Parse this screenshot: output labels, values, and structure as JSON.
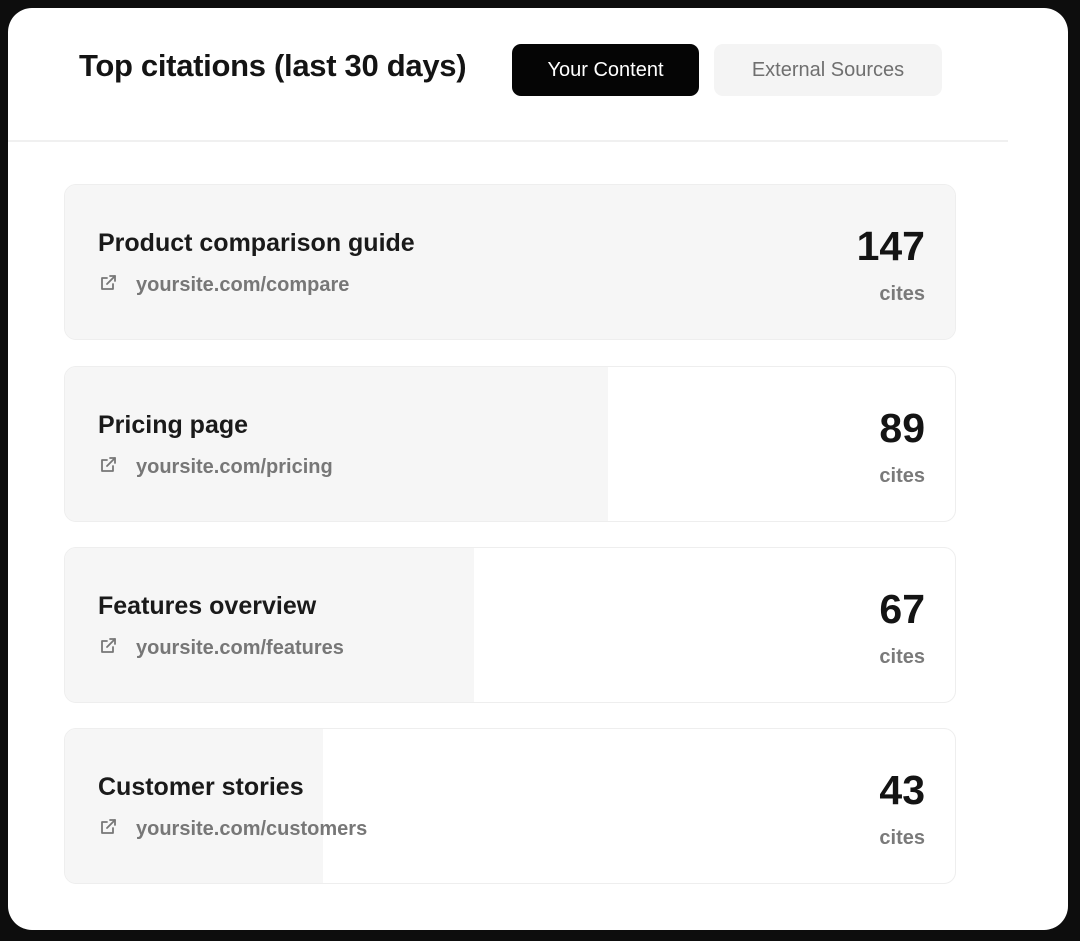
{
  "header": {
    "title": "Top citations (last 30 days)",
    "tabs": [
      {
        "label": "Your Content",
        "active": true
      },
      {
        "label": "External Sources",
        "active": false
      }
    ]
  },
  "citations": [
    {
      "name": "Product comparison guide",
      "url": "yoursite.com/compare",
      "count": "147",
      "unit": "cites",
      "share": 1.0
    },
    {
      "name": "Pricing page",
      "url": "yoursite.com/pricing",
      "count": "89",
      "unit": "cites",
      "share": 0.61
    },
    {
      "name": "Features overview",
      "url": "yoursite.com/features",
      "count": "67",
      "unit": "cites",
      "share": 0.46
    },
    {
      "name": "Customer stories",
      "url": "yoursite.com/customers",
      "count": "43",
      "unit": "cites",
      "share": 0.29
    }
  ],
  "icons": {
    "link": "external-link-icon"
  },
  "colors": {
    "active_tab": "#050505",
    "bar_fill": "#f6f6f6"
  }
}
